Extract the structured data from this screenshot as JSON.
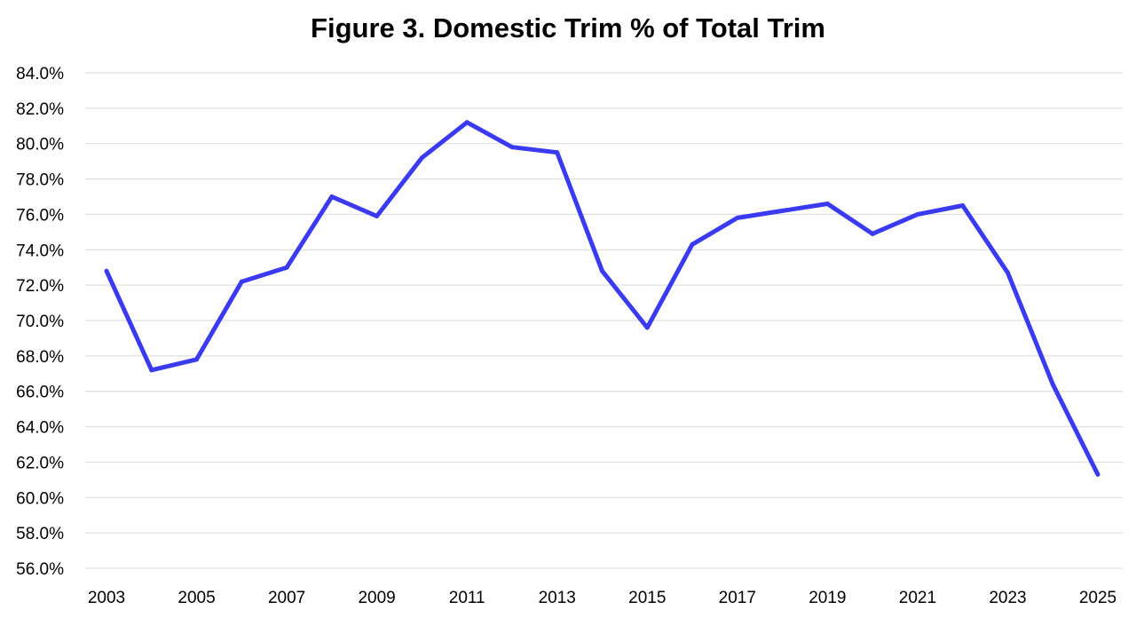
{
  "chart_data": {
    "type": "line",
    "title": "Figure 3. Domestic Trim % of Total Trim",
    "xlabel": "",
    "ylabel": "",
    "ylim": [
      56.0,
      84.0
    ],
    "ytick_step": 2.0,
    "ytick_labels": [
      "56.0%",
      "58.0%",
      "60.0%",
      "62.0%",
      "64.0%",
      "66.0%",
      "68.0%",
      "70.0%",
      "72.0%",
      "74.0%",
      "76.0%",
      "78.0%",
      "80.0%",
      "82.0%",
      "84.0%"
    ],
    "x": [
      2003,
      2004,
      2005,
      2006,
      2007,
      2008,
      2009,
      2010,
      2011,
      2012,
      2013,
      2014,
      2015,
      2016,
      2017,
      2018,
      2019,
      2020,
      2021,
      2022,
      2023,
      2024,
      2025
    ],
    "xtick_labels": [
      "2003",
      "2005",
      "2007",
      "2009",
      "2011",
      "2013",
      "2015",
      "2017",
      "2019",
      "2021",
      "2023",
      "2025"
    ],
    "grid": true,
    "legend": "none",
    "series": [
      {
        "color": "#3a3af0",
        "values": [
          72.8,
          67.2,
          67.8,
          72.2,
          73.0,
          77.0,
          75.9,
          79.2,
          81.2,
          79.8,
          79.5,
          72.8,
          69.6,
          74.3,
          75.8,
          76.2,
          76.6,
          74.9,
          76.0,
          76.5,
          72.7,
          66.4,
          61.3
        ]
      }
    ]
  }
}
